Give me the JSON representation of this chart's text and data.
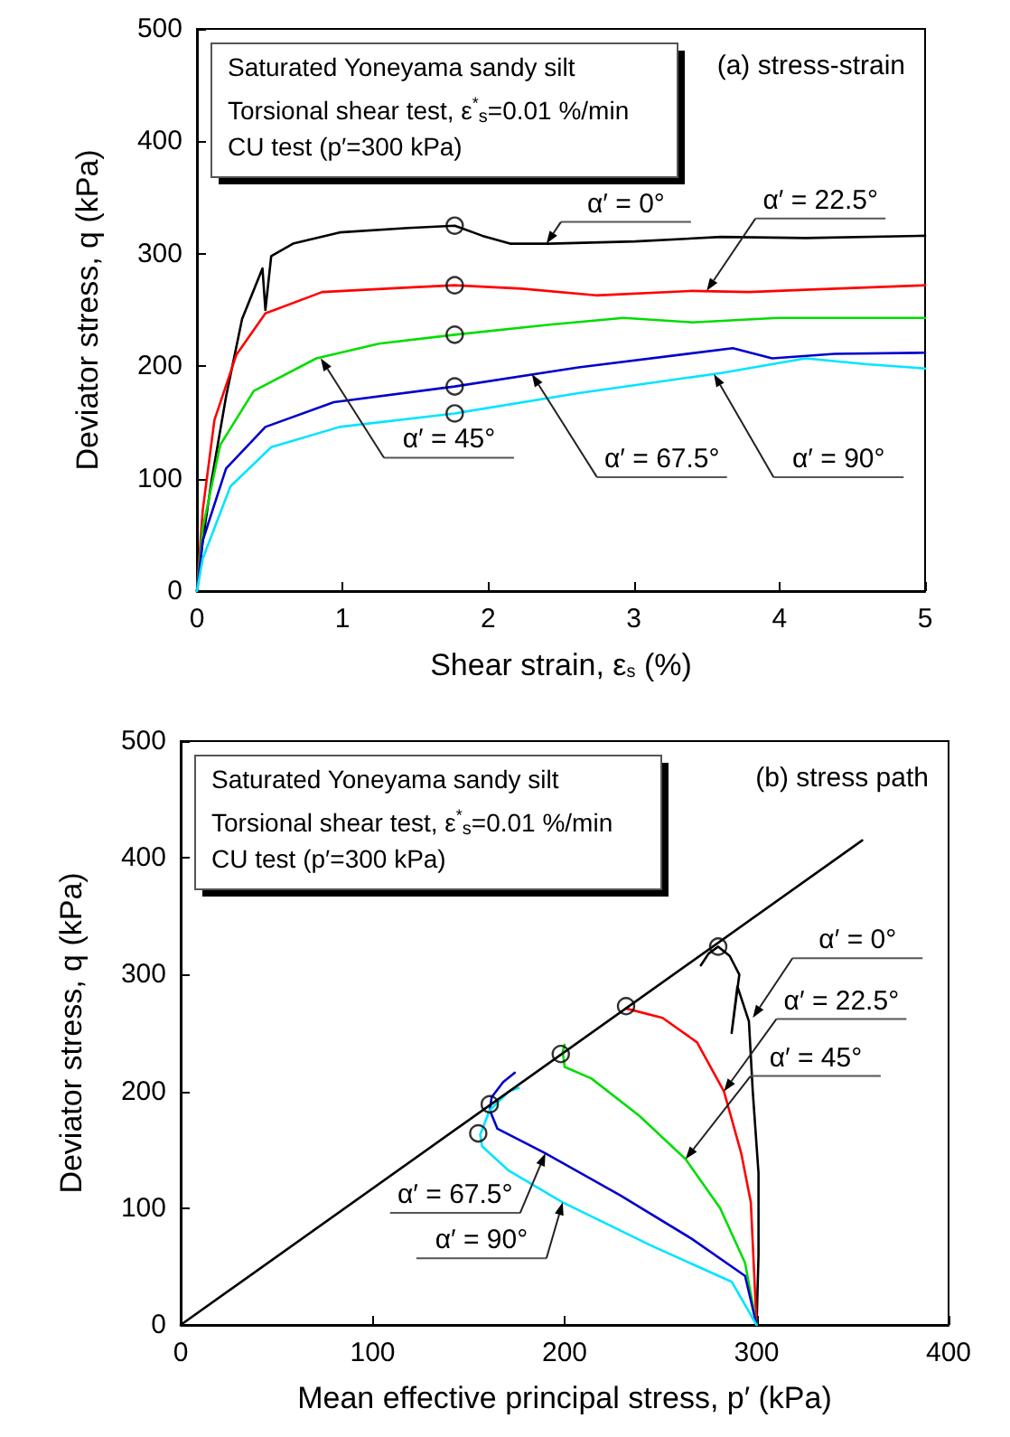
{
  "chart_data": [
    {
      "type": "line",
      "title": "(a) stress-strain",
      "xlabel": "Shear strain, ε$_{s}$ (%)",
      "ylabel": "Deviator stress, q (kPa)",
      "xlim": [
        0,
        5
      ],
      "ylim": [
        0,
        500
      ],
      "xticks": [
        0,
        1,
        2,
        3,
        4,
        5
      ],
      "yticks": [
        0,
        100,
        200,
        300,
        400,
        500
      ],
      "marker": "none",
      "line_style": "solid",
      "series": [
        {
          "color": "#000000",
          "x": [
            0,
            0.04,
            0.1,
            0.2,
            0.31,
            0.45,
            0.47,
            0.51,
            0.66,
            0.98,
            1.45,
            1.77,
            1.96,
            2.15,
            2.42,
            3.01,
            3.6,
            4.18,
            5
          ],
          "values": [
            0,
            45,
            98,
            173,
            242,
            287,
            250,
            298,
            309,
            319,
            323,
            325,
            316,
            309,
            309,
            311,
            315,
            314,
            316
          ]
        },
        {
          "color": "#ff0000",
          "x": [
            0,
            0.04,
            0.12,
            0.27,
            0.47,
            0.86,
            1.45,
            1.77,
            2.23,
            2.74,
            3.4,
            3.79,
            4.18,
            5
          ],
          "values": [
            0,
            72,
            152,
            210,
            247,
            266,
            270,
            272,
            269,
            263,
            267,
            266,
            268,
            272
          ]
        },
        {
          "color": "#00dd00",
          "x": [
            0,
            0.04,
            0.16,
            0.39,
            0.82,
            1.25,
            1.77,
            2.42,
            2.93,
            3.4,
            3.99,
            5
          ],
          "values": [
            0,
            56,
            130,
            178,
            207,
            220,
            228,
            237,
            243,
            239,
            243,
            243
          ]
        },
        {
          "color": "#0000cc",
          "x": [
            0,
            0.04,
            0.2,
            0.47,
            0.94,
            1.77,
            2.62,
            3.68,
            3.95,
            4.38,
            5
          ],
          "values": [
            0,
            45,
            109,
            146,
            168,
            182,
            199,
            216,
            207,
            211,
            212
          ]
        },
        {
          "color": "#00e5ff",
          "x": [
            0,
            0.04,
            0.23,
            0.51,
            0.98,
            1.77,
            2.62,
            3.6,
            4.18,
            4.58,
            5
          ],
          "values": [
            0,
            29,
            93,
            128,
            146,
            158,
            176,
            194,
            207,
            202,
            198
          ]
        },
        {
          "type": "scatter",
          "marker": "circle",
          "color": "#000000",
          "x": [
            1.77,
            1.77,
            1.77,
            1.77,
            1.77
          ],
          "values": [
            325,
            272,
            228,
            182,
            158
          ]
        }
      ],
      "annotations": [
        "Saturated Yoneyama sandy silt",
        "Torsional shear test, ε$^{*}$$_{s}$=0.01 %/min",
        "CU test (p′=300 kPa)",
        {
          "text": "α′ = 0°",
          "x": 2.4,
          "y": 309
        },
        {
          "text": "α′ = 22.5°",
          "x": 3.5,
          "y": 267
        },
        {
          "text": "α′ = 45°",
          "x": 0.85,
          "y": 207
        },
        {
          "text": "α′ = 67.5°",
          "x": 2.3,
          "y": 193
        },
        {
          "text": "α′ = 90°",
          "x": 3.55,
          "y": 193
        }
      ]
    },
    {
      "type": "line",
      "title": "(b) stress path",
      "xlabel": "Mean effective principal stress, p′ (kPa)",
      "ylabel": "Deviator stress, q (kPa)",
      "xlim": [
        0,
        400
      ],
      "ylim": [
        0,
        500
      ],
      "xticks": [
        0,
        100,
        200,
        300,
        400
      ],
      "yticks": [
        0,
        100,
        200,
        300,
        400,
        500
      ],
      "marker": "none",
      "line_style": "solid",
      "series": [
        {
          "color": "#000000",
          "x": [
            300,
            301,
            301,
            298,
            296,
            290,
            287,
            291,
            286,
            280,
            275,
            271
          ],
          "values": [
            0,
            60,
            130,
            200,
            260,
            290,
            250,
            300,
            316,
            324,
            318,
            308
          ]
        },
        {
          "color": "#ff0000",
          "x": [
            300,
            297,
            292,
            283,
            269,
            251,
            232
          ],
          "values": [
            0,
            105,
            147,
            200,
            242,
            263,
            271
          ]
        },
        {
          "color": "#00dd00",
          "x": [
            300,
            294,
            281,
            263,
            239,
            214,
            200,
            199,
            200
          ],
          "values": [
            0,
            53,
            100,
            142,
            179,
            211,
            221,
            234,
            240
          ]
        },
        {
          "color": "#0000cc",
          "x": [
            300,
            294,
            266,
            229,
            190,
            165,
            161,
            162,
            168,
            174
          ],
          "values": [
            0,
            42,
            74,
            111,
            147,
            168,
            184,
            195,
            208,
            216
          ]
        },
        {
          "color": "#00e5ff",
          "x": [
            300,
            287,
            245,
            199,
            171,
            157,
            156,
            161,
            171,
            176
          ],
          "values": [
            0,
            37,
            68,
            105,
            132,
            153,
            163,
            184,
            200,
            203
          ]
        },
        {
          "color": "#000000",
          "x": [
            0,
            355
          ],
          "values": [
            0,
            415
          ]
        },
        {
          "type": "scatter",
          "marker": "circle",
          "color": "#000000",
          "x": [
            280,
            232,
            198,
            161,
            155
          ],
          "values": [
            324,
            273,
            232,
            189,
            164
          ]
        }
      ],
      "annotations": [
        "Saturated Yoneyama sandy silt",
        "Torsional shear test, ε$^{*}$$_{s}$=0.01 %/min",
        "CU test (p′=300 kPa)",
        {
          "text": "α′ = 0°",
          "x": 298,
          "y": 263
        },
        {
          "text": "α′ = 22.5°",
          "x": 283,
          "y": 200
        },
        {
          "text": "α′ = 45°",
          "x": 263,
          "y": 142
        },
        {
          "text": "α′ = 67.5°",
          "x": 190,
          "y": 147
        },
        {
          "text": "α′ = 90°",
          "x": 199,
          "y": 105
        }
      ]
    }
  ]
}
